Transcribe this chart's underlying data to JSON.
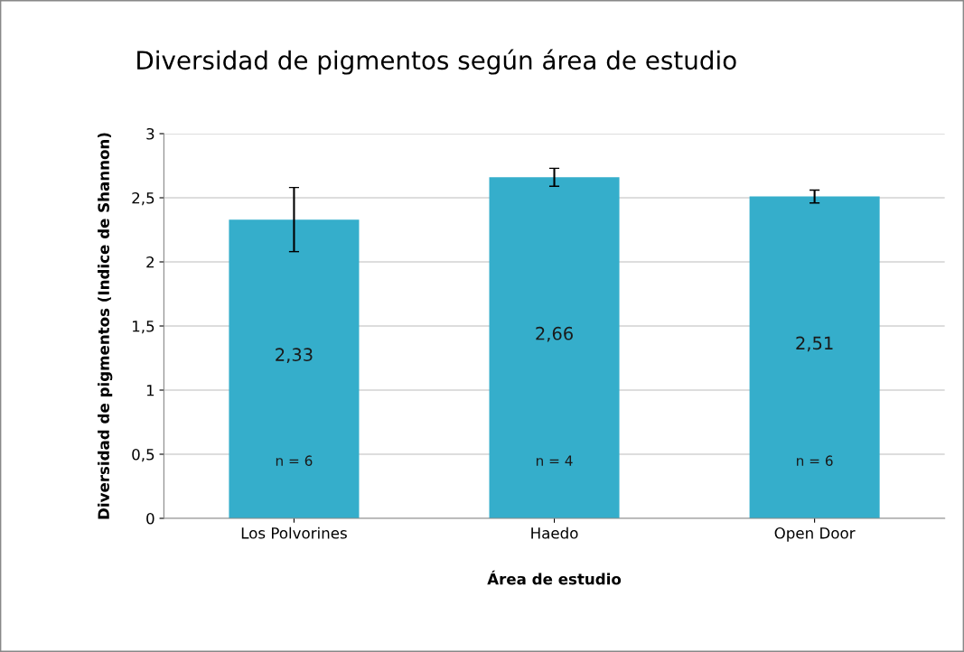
{
  "chart_data": {
    "type": "bar",
    "title": "Diversidad de pigmentos según área de estudio",
    "xlabel": "Área de estudio",
    "ylabel": "Diversidad de pigmentos (Indice de Shannon)",
    "categories": [
      "Los Polvorines",
      "Haedo",
      "Open Door"
    ],
    "values": [
      2.33,
      2.66,
      2.51
    ],
    "errors": [
      0.25,
      0.07,
      0.05
    ],
    "value_labels": [
      "2,33",
      "2,66",
      "2,51"
    ],
    "color": "#35aecb",
    "ylim": [
      0,
      3
    ],
    "yticks": [
      0,
      {
        "value": 0.5,
        "label": "0,5"
      },
      1,
      {
        "value": 1.5,
        "label": "1,5"
      },
      2,
      {
        "value": 2.5,
        "label": "2,5"
      },
      3
    ],
    "grid": "y",
    "legend": false,
    "annotations": [
      "n = 6",
      "n = 4",
      "n = 6"
    ]
  }
}
